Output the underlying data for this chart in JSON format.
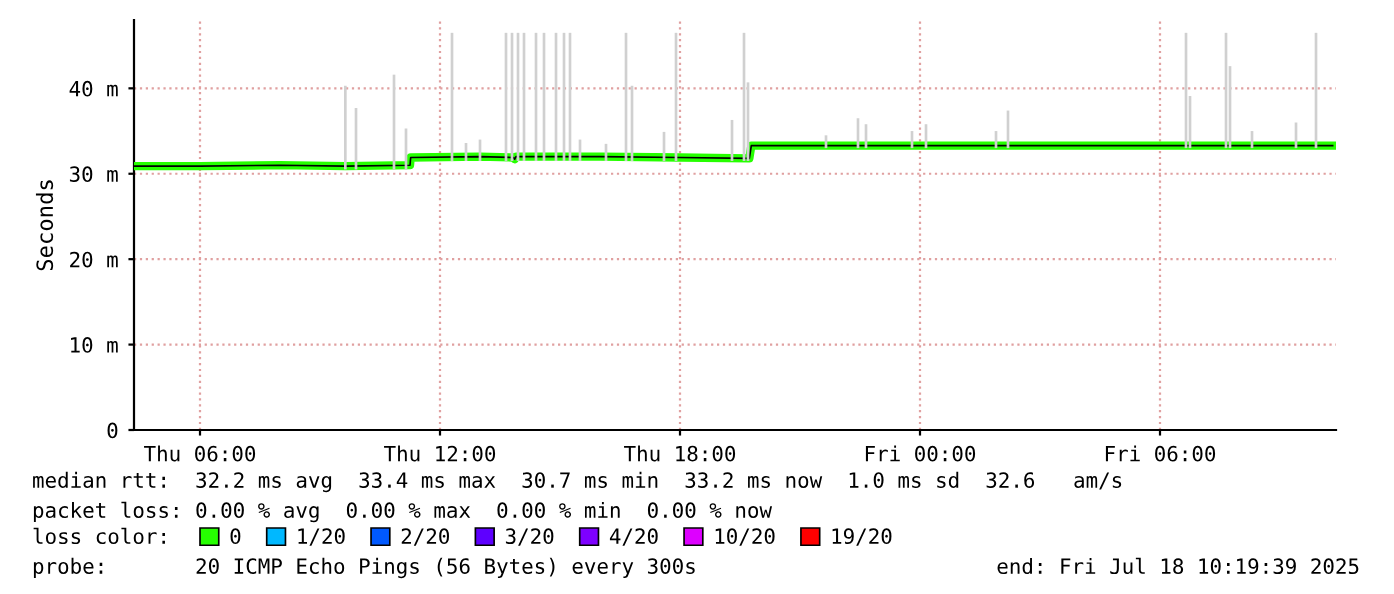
{
  "chart_data": {
    "type": "line",
    "ylabel": "Seconds",
    "legend_title": "loss color:",
    "legend": "bottom",
    "grid": true,
    "marker": "none",
    "line_style": "solid",
    "xlim": [
      "2025-07-17T04:21",
      "2025-07-18T10:24"
    ],
    "xticks": [
      {
        "value": "2025-07-17T06:00",
        "label": "Thu 06:00"
      },
      {
        "value": "2025-07-17T12:00",
        "label": "Thu 12:00"
      },
      {
        "value": "2025-07-17T18:00",
        "label": "Thu 18:00"
      },
      {
        "value": "2025-07-18T00:00",
        "label": "Fri 00:00"
      },
      {
        "value": "2025-07-18T06:00",
        "label": "Fri 06:00"
      }
    ],
    "ylim": [
      0,
      48
    ],
    "yticks": [
      0,
      {
        "value": 10,
        "label": "10 m"
      },
      {
        "value": 20,
        "label": "20 m"
      },
      {
        "value": 30,
        "label": "30 m"
      },
      {
        "value": 40,
        "label": "40 m"
      }
    ],
    "series": [
      {
        "type": "bar",
        "color": "#d0d0d0",
        "x": [
          "2025-07-17T09:38",
          "2025-07-17T09:54",
          "2025-07-17T10:51",
          "2025-07-17T11:09",
          "2025-07-17T12:18",
          "2025-07-17T12:39",
          "2025-07-17T13:00",
          "2025-07-17T13:39",
          "2025-07-17T13:48",
          "2025-07-17T13:57",
          "2025-07-17T14:06",
          "2025-07-17T14:24",
          "2025-07-17T14:36",
          "2025-07-17T14:54",
          "2025-07-17T15:06",
          "2025-07-17T15:15",
          "2025-07-17T15:30",
          "2025-07-17T16:09",
          "2025-07-17T16:39",
          "2025-07-17T16:48",
          "2025-07-17T17:36",
          "2025-07-17T17:54",
          "2025-07-17T19:18",
          "2025-07-17T19:36",
          "2025-07-17T19:42",
          "2025-07-17T21:39",
          "2025-07-17T22:27",
          "2025-07-17T22:39",
          "2025-07-17T23:48",
          "2025-07-18T00:09",
          "2025-07-18T01:54",
          "2025-07-18T02:12",
          "2025-07-18T06:39",
          "2025-07-18T06:45",
          "2025-07-18T07:39",
          "2025-07-18T07:45",
          "2025-07-18T08:18",
          "2025-07-18T09:24",
          "2025-07-18T09:54"
        ],
        "base": [
          30.5,
          30.5,
          30.5,
          30.5,
          31.5,
          31.5,
          31.5,
          31.5,
          31.5,
          31.5,
          31.5,
          31.5,
          31.5,
          31.5,
          31.5,
          31.5,
          31.5,
          31.5,
          31.5,
          31.5,
          31.5,
          31.5,
          31.5,
          31.5,
          31.5,
          33,
          33,
          33,
          33,
          33,
          33,
          33,
          33,
          33,
          33,
          33,
          33,
          33,
          33
        ],
        "values": [
          9.8,
          7.2,
          11.1,
          4.8,
          15,
          2.1,
          2.5,
          15,
          15,
          15,
          15,
          15,
          15,
          15,
          15,
          15,
          2.5,
          2,
          15,
          8.8,
          3.4,
          15,
          4.8,
          15,
          9.2,
          1.5,
          3.5,
          2.8,
          2,
          2.8,
          2,
          4.4,
          13.5,
          6.1,
          13.5,
          9.6,
          2,
          3,
          13.5
        ]
      },
      {
        "name": "0",
        "color": "#26ff00",
        "x": [
          "2025-07-17T04:21",
          "2025-07-17T06:00",
          "2025-07-17T08:00",
          "2025-07-17T09:38",
          "2025-07-17T11:15",
          "2025-07-17T11:16",
          "2025-07-17T13:00",
          "2025-07-17T13:50",
          "2025-07-17T13:52",
          "2025-07-17T13:54",
          "2025-07-17T16:00",
          "2025-07-17T18:00",
          "2025-07-17T19:44",
          "2025-07-17T19:47",
          "2025-07-17T22:00",
          "2025-07-18T02:00",
          "2025-07-18T06:00",
          "2025-07-18T10:19"
        ],
        "values": [
          30.9,
          30.9,
          31,
          30.9,
          31,
          31.9,
          32,
          31.9,
          31.7,
          32,
          32,
          31.9,
          31.8,
          33.3,
          33.3,
          33.3,
          33.3,
          33.3
        ]
      },
      {
        "name": "1/20",
        "color": "#00b8ff"
      },
      {
        "name": "2/20",
        "color": "#0059ff"
      },
      {
        "name": "3/20",
        "color": "#5e00ff"
      },
      {
        "name": "4/20",
        "color": "#7e00ff"
      },
      {
        "name": "10/20",
        "color": "#dd00ff"
      },
      {
        "name": "19/20",
        "color": "#ff0000"
      }
    ],
    "annotations": [
      "median rtt:  32.2 ms avg  33.4 ms max  30.7 ms min  33.2 ms now  1.0 ms sd  32.6   am/s",
      "packet loss: 0.00 % avg  0.00 % max  0.00 % min  0.00 % now",
      "probe:       20 ICMP Echo Pings (56 Bytes) every 300s",
      "end: Fri Jul 18 10:19:39 2025"
    ]
  }
}
